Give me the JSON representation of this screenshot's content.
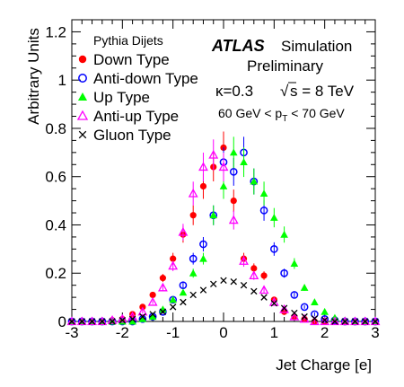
{
  "chart_data": {
    "type": "scatter",
    "xlabel": "Jet Charge [e]",
    "ylabel": "Arbitrary Units",
    "xlim": [
      -3,
      3
    ],
    "ylim": [
      0,
      1.25
    ],
    "xticks": [
      "-3",
      "-2",
      "-1",
      "0",
      "1",
      "2",
      "3"
    ],
    "yticks": [
      "0",
      "0.2",
      "0.4",
      "0.6",
      "0.8",
      "1",
      "1.2"
    ],
    "legend_title": "Pythia Dijets",
    "experiment": "ATLAS",
    "experiment_label": "Simulation",
    "status": "Preliminary",
    "kappa": "κ=0.3",
    "energy": "s = 8 TeV",
    "energy_prefix": "√",
    "pt_range": "60 GeV < p_T < 70 GeV",
    "pt_left": "60 GeV < p",
    "pt_sub": "T",
    "pt_right": " < 70 GeV",
    "grid": false,
    "series": [
      {
        "name": "Down Type",
        "marker": "filled-circle",
        "color": "#ff0000",
        "x": [
          -3.0,
          -2.8,
          -2.6,
          -2.4,
          -2.2,
          -2.0,
          -1.8,
          -1.6,
          -1.4,
          -1.2,
          -1.0,
          -0.8,
          -0.6,
          -0.4,
          -0.2,
          0.0,
          0.2,
          0.4,
          0.6,
          0.8,
          1.0,
          1.2,
          1.4,
          1.6,
          1.8,
          2.0,
          2.2,
          2.4,
          2.6,
          2.8,
          3.0
        ],
        "y": [
          0.0,
          0.0,
          0.0,
          0.0,
          0.005,
          0.01,
          0.03,
          0.06,
          0.11,
          0.18,
          0.26,
          0.36,
          0.44,
          0.56,
          0.64,
          0.72,
          0.5,
          0.26,
          0.22,
          0.19,
          0.09,
          0.04,
          0.02,
          0.01,
          0.0,
          0.0,
          0.0,
          0.0,
          0.0,
          0.0,
          0.0
        ]
      },
      {
        "name": "Anti-down Type",
        "marker": "open-circle",
        "color": "#0000ff",
        "x": [
          -3.0,
          -2.8,
          -2.6,
          -2.4,
          -2.2,
          -2.0,
          -1.8,
          -1.6,
          -1.4,
          -1.2,
          -1.0,
          -0.8,
          -0.6,
          -0.4,
          -0.2,
          0.0,
          0.2,
          0.4,
          0.6,
          0.8,
          1.0,
          1.2,
          1.4,
          1.6,
          1.8,
          2.0,
          2.2,
          2.4,
          2.6,
          2.8,
          3.0
        ],
        "y": [
          0.0,
          0.0,
          0.0,
          0.0,
          0.0,
          0.0,
          0.0,
          0.01,
          0.02,
          0.04,
          0.09,
          0.15,
          0.26,
          0.32,
          0.44,
          0.66,
          0.62,
          0.7,
          0.58,
          0.46,
          0.3,
          0.2,
          0.11,
          0.06,
          0.03,
          0.01,
          0.005,
          0.0,
          0.0,
          0.0,
          0.0
        ]
      },
      {
        "name": "Up Type",
        "marker": "filled-triangle",
        "color": "#00ff00",
        "x": [
          -3.0,
          -2.8,
          -2.6,
          -2.4,
          -2.2,
          -2.0,
          -1.8,
          -1.6,
          -1.4,
          -1.2,
          -1.0,
          -0.8,
          -0.6,
          -0.4,
          -0.2,
          0.0,
          0.2,
          0.4,
          0.6,
          0.8,
          1.0,
          1.2,
          1.4,
          1.6,
          1.8,
          2.0,
          2.2,
          2.4,
          2.6,
          2.8,
          3.0
        ],
        "y": [
          0.0,
          0.0,
          0.0,
          0.0,
          0.0,
          0.0,
          0.0,
          0.01,
          0.02,
          0.05,
          0.09,
          0.12,
          0.2,
          0.26,
          0.44,
          0.56,
          0.7,
          0.66,
          0.58,
          0.53,
          0.43,
          0.36,
          0.24,
          0.14,
          0.08,
          0.04,
          0.015,
          0.005,
          0.0,
          0.0,
          0.0
        ]
      },
      {
        "name": "Anti-up Type",
        "marker": "open-triangle",
        "color": "#ff00ff",
        "x": [
          -3.0,
          -2.8,
          -2.6,
          -2.4,
          -2.2,
          -2.0,
          -1.8,
          -1.6,
          -1.4,
          -1.2,
          -1.0,
          -0.8,
          -0.6,
          -0.4,
          -0.2,
          0.0,
          0.2,
          0.4,
          0.6,
          0.8,
          1.0,
          1.2,
          1.4,
          1.6,
          1.8,
          2.0,
          2.2,
          2.4,
          2.6,
          2.8,
          3.0
        ],
        "y": [
          0.0,
          0.0,
          0.0,
          0.0,
          0.005,
          0.01,
          0.02,
          0.04,
          0.08,
          0.14,
          0.23,
          0.37,
          0.53,
          0.64,
          0.69,
          0.64,
          0.42,
          0.25,
          0.19,
          0.13,
          0.08,
          0.05,
          0.02,
          0.01,
          0.0,
          0.0,
          0.0,
          0.0,
          0.0,
          0.0,
          0.0
        ]
      },
      {
        "name": "Gluon Type",
        "marker": "cross",
        "color": "#000000",
        "x": [
          -3.0,
          -2.8,
          -2.6,
          -2.4,
          -2.2,
          -2.0,
          -1.8,
          -1.6,
          -1.4,
          -1.2,
          -1.0,
          -0.8,
          -0.6,
          -0.4,
          -0.2,
          0.0,
          0.2,
          0.4,
          0.6,
          0.8,
          1.0,
          1.2,
          1.4,
          1.6,
          1.8,
          2.0,
          2.2,
          2.4,
          2.6,
          2.8,
          3.0
        ],
        "y": [
          0.0,
          0.0,
          0.0,
          0.0,
          0.0,
          0.005,
          0.01,
          0.02,
          0.03,
          0.04,
          0.06,
          0.08,
          0.11,
          0.13,
          0.155,
          0.17,
          0.165,
          0.15,
          0.125,
          0.1,
          0.075,
          0.055,
          0.035,
          0.02,
          0.012,
          0.006,
          0.0,
          0.0,
          0.0,
          0.0,
          0.0
        ]
      }
    ]
  }
}
